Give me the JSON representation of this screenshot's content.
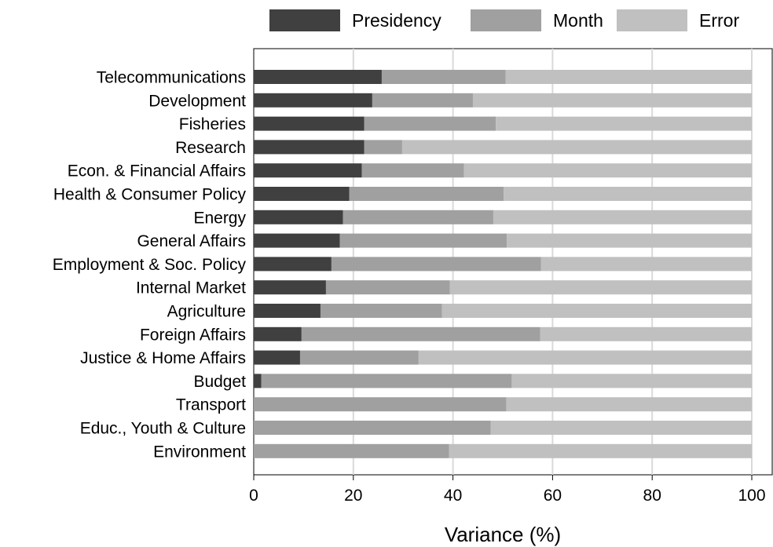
{
  "chart_data": {
    "type": "bar",
    "orientation": "horizontal",
    "stacked": true,
    "categories": [
      "Telecommunications",
      "Development",
      "Fisheries",
      "Research",
      "Econ. & Financial Affairs",
      "Health & Consumer Policy",
      "Energy",
      "General Affairs",
      "Employment & Soc. Policy",
      "Internal Market",
      "Agriculture",
      "Foreign Affairs",
      "Justice & Home Affairs",
      "Budget",
      "Transport",
      "Educ., Youth & Culture",
      "Environment"
    ],
    "series": [
      {
        "name": "Presidency",
        "color": "#404040",
        "values": [
          25.7,
          23.8,
          22.2,
          22.2,
          21.7,
          19.2,
          17.9,
          17.3,
          15.6,
          14.5,
          13.4,
          9.6,
          9.3,
          1.5,
          0,
          0,
          0
        ]
      },
      {
        "name": "Month",
        "color": "#a0a0a0",
        "values": [
          24.9,
          20.2,
          26.4,
          7.6,
          20.5,
          31.0,
          30.2,
          33.5,
          42.1,
          24.9,
          24.4,
          47.9,
          23.8,
          50.3,
          50.7,
          47.6,
          39.2
        ]
      },
      {
        "name": "Error",
        "color": "#c0c0c0",
        "values": [
          49.4,
          56.0,
          51.4,
          70.2,
          57.8,
          49.8,
          51.9,
          49.2,
          42.3,
          60.6,
          62.2,
          42.5,
          66.9,
          48.2,
          49.3,
          52.4,
          60.8
        ]
      }
    ],
    "xlabel": "Variance (%)",
    "ylabel": "",
    "xlim": [
      0,
      100
    ],
    "xticks": [
      "0",
      "20",
      "40",
      "60",
      "80",
      "100"
    ],
    "grid": "vertical",
    "legend_position": "top"
  }
}
